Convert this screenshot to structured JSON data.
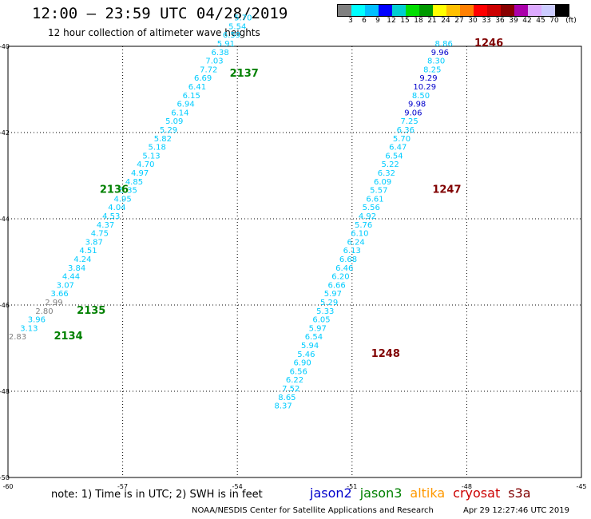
{
  "title": "12:00 – 23:59 UTC 04/28/2019",
  "subtitle": "12 hour collection of altimeter wave heights",
  "legend": {
    "unit": "(ft)",
    "colors": [
      "#808080",
      "#00ffff",
      "#00bfff",
      "#0000ff",
      "#00ced1",
      "#00dd00",
      "#009900",
      "#ffff00",
      "#ffc000",
      "#ff8000",
      "#ff0000",
      "#cc0000",
      "#880000",
      "#aa00aa",
      "#ddaaff",
      "#ccccff",
      "#000000"
    ],
    "labels": [
      "3",
      "6",
      "9",
      "12",
      "15",
      "18",
      "21",
      "24",
      "27",
      "30",
      "33",
      "36",
      "39",
      "42",
      "45",
      "70"
    ]
  },
  "chart_data": {
    "type": "scatter",
    "x_ticks": [
      "-60",
      "-57",
      "-54",
      "-51",
      "-48",
      "-45"
    ],
    "y_ticks": [
      "-40",
      "-42",
      "-44",
      "-46",
      "-48",
      "-50"
    ],
    "xlim": [
      -60,
      -45
    ],
    "ylim": [
      -50,
      -40
    ],
    "track_labels": [
      {
        "text": "2137",
        "lon": -54.2,
        "lat": -40.7,
        "color": "#008000"
      },
      {
        "text": "2136",
        "lon": -57.6,
        "lat": -43.4,
        "color": "#008000"
      },
      {
        "text": "2135",
        "lon": -58.2,
        "lat": -46.2,
        "color": "#008000"
      },
      {
        "text": "2134",
        "lon": -58.8,
        "lat": -46.8,
        "color": "#008000"
      },
      {
        "text": "1246",
        "lon": -47.8,
        "lat": -40.0,
        "color": "#800000"
      },
      {
        "text": "1247",
        "lon": -48.9,
        "lat": -43.4,
        "color": "#800000"
      },
      {
        "text": "1248",
        "lon": -50.5,
        "lat": -47.2,
        "color": "#800000"
      }
    ],
    "series": [
      {
        "points": [
          {
            "v": "2.83",
            "lon": -59.75,
            "lat": -46.8,
            "c": "#808080"
          },
          {
            "v": "3.13",
            "lon": -59.45,
            "lat": -46.6,
            "c": "#00ccff"
          },
          {
            "v": "3.96",
            "lon": -59.25,
            "lat": -46.4,
            "c": "#00ccff"
          },
          {
            "v": "2.80",
            "lon": -59.05,
            "lat": -46.2,
            "c": "#808080"
          },
          {
            "v": "2.99",
            "lon": -58.8,
            "lat": -46.0,
            "c": "#808080"
          },
          {
            "v": "3.66",
            "lon": -58.65,
            "lat": -45.8,
            "c": "#00ccff"
          },
          {
            "v": "3.07",
            "lon": -58.5,
            "lat": -45.6,
            "c": "#00ccff"
          },
          {
            "v": "4.44",
            "lon": -58.35,
            "lat": -45.4,
            "c": "#00ccff"
          },
          {
            "v": "3.84",
            "lon": -58.2,
            "lat": -45.2,
            "c": "#00ccff"
          },
          {
            "v": "4.24",
            "lon": -58.05,
            "lat": -45.0,
            "c": "#00ccff"
          },
          {
            "v": "4.51",
            "lon": -57.9,
            "lat": -44.8,
            "c": "#00ccff"
          },
          {
            "v": "3.87",
            "lon": -57.75,
            "lat": -44.6,
            "c": "#00ccff"
          },
          {
            "v": "4.75",
            "lon": -57.6,
            "lat": -44.4,
            "c": "#00ccff"
          },
          {
            "v": "4.37",
            "lon": -57.45,
            "lat": -44.2,
            "c": "#00ccff"
          },
          {
            "v": "4.53",
            "lon": -57.3,
            "lat": -44.0,
            "c": "#00ccff"
          },
          {
            "v": "4.04",
            "lon": -57.15,
            "lat": -43.8,
            "c": "#00ccff"
          },
          {
            "v": "4.95",
            "lon": -57.0,
            "lat": -43.6,
            "c": "#00ccff"
          },
          {
            "v": "5.35",
            "lon": -56.85,
            "lat": -43.4,
            "c": "#00ccff"
          },
          {
            "v": "4.85",
            "lon": -56.7,
            "lat": -43.2,
            "c": "#00ccff"
          },
          {
            "v": "4.97",
            "lon": -56.55,
            "lat": -43.0,
            "c": "#00ccff"
          },
          {
            "v": "4.70",
            "lon": -56.4,
            "lat": -42.8,
            "c": "#00ccff"
          },
          {
            "v": "5.13",
            "lon": -56.25,
            "lat": -42.6,
            "c": "#00ccff"
          },
          {
            "v": "5.18",
            "lon": -56.1,
            "lat": -42.4,
            "c": "#00ccff"
          },
          {
            "v": "5.82",
            "lon": -55.95,
            "lat": -42.2,
            "c": "#00ccff"
          },
          {
            "v": "5.29",
            "lon": -55.8,
            "lat": -42.0,
            "c": "#00ccff"
          },
          {
            "v": "5.09",
            "lon": -55.65,
            "lat": -41.8,
            "c": "#00ccff"
          },
          {
            "v": "6.14",
            "lon": -55.5,
            "lat": -41.6,
            "c": "#00ccff"
          },
          {
            "v": "6.94",
            "lon": -55.35,
            "lat": -41.4,
            "c": "#00ccff"
          },
          {
            "v": "6.15",
            "lon": -55.2,
            "lat": -41.2,
            "c": "#00ccff"
          },
          {
            "v": "6.41",
            "lon": -55.05,
            "lat": -41.0,
            "c": "#00ccff"
          },
          {
            "v": "6.69",
            "lon": -54.9,
            "lat": -40.8,
            "c": "#00ccff"
          },
          {
            "v": "7.72",
            "lon": -54.75,
            "lat": -40.6,
            "c": "#00ccff"
          },
          {
            "v": "7.03",
            "lon": -54.6,
            "lat": -40.4,
            "c": "#00ccff"
          },
          {
            "v": "6.38",
            "lon": -54.45,
            "lat": -40.2,
            "c": "#00ccff"
          },
          {
            "v": "5.91",
            "lon": -54.3,
            "lat": -40.0,
            "c": "#00ccff"
          },
          {
            "v": "6.59",
            "lon": -54.15,
            "lat": -39.8,
            "c": "#00ccff"
          },
          {
            "v": "5.54",
            "lon": -54.0,
            "lat": -39.6,
            "c": "#00ccff"
          },
          {
            "v": "5.70",
            "lon": -53.85,
            "lat": -39.4,
            "c": "#00ccff"
          }
        ]
      },
      {
        "points": [
          {
            "v": "8.86",
            "lon": -48.6,
            "lat": -40.0,
            "c": "#00ccff"
          },
          {
            "v": "9.96",
            "lon": -48.7,
            "lat": -40.2,
            "c": "#0000cc"
          },
          {
            "v": "8.30",
            "lon": -48.8,
            "lat": -40.4,
            "c": "#00ccff"
          },
          {
            "v": "8.25",
            "lon": -48.9,
            "lat": -40.6,
            "c": "#00ccff"
          },
          {
            "v": "9.29",
            "lon": -49.0,
            "lat": -40.8,
            "c": "#0000cc"
          },
          {
            "v": "10.29",
            "lon": -49.1,
            "lat": -41.0,
            "c": "#0000cc"
          },
          {
            "v": "8.50",
            "lon": -49.2,
            "lat": -41.2,
            "c": "#00ccff"
          },
          {
            "v": "9.98",
            "lon": -49.3,
            "lat": -41.4,
            "c": "#0000cc"
          },
          {
            "v": "9.06",
            "lon": -49.4,
            "lat": -41.6,
            "c": "#0000cc"
          },
          {
            "v": "7.25",
            "lon": -49.5,
            "lat": -41.8,
            "c": "#00ccff"
          },
          {
            "v": "6.36",
            "lon": -49.6,
            "lat": -42.0,
            "c": "#00ccff"
          },
          {
            "v": "5.70",
            "lon": -49.7,
            "lat": -42.2,
            "c": "#00ccff"
          },
          {
            "v": "6.47",
            "lon": -49.8,
            "lat": -42.4,
            "c": "#00ccff"
          },
          {
            "v": "6.54",
            "lon": -49.9,
            "lat": -42.6,
            "c": "#00ccff"
          },
          {
            "v": "5.22",
            "lon": -50.0,
            "lat": -42.8,
            "c": "#00ccff"
          },
          {
            "v": "6.32",
            "lon": -50.1,
            "lat": -43.0,
            "c": "#00ccff"
          },
          {
            "v": "6.09",
            "lon": -50.2,
            "lat": -43.2,
            "c": "#00ccff"
          },
          {
            "v": "5.57",
            "lon": -50.3,
            "lat": -43.4,
            "c": "#00ccff"
          },
          {
            "v": "6.61",
            "lon": -50.4,
            "lat": -43.6,
            "c": "#00ccff"
          },
          {
            "v": "5.56",
            "lon": -50.5,
            "lat": -43.8,
            "c": "#00ccff"
          },
          {
            "v": "4.92",
            "lon": -50.6,
            "lat": -44.0,
            "c": "#00ccff"
          },
          {
            "v": "5.76",
            "lon": -50.7,
            "lat": -44.2,
            "c": "#00ccff"
          },
          {
            "v": "6.10",
            "lon": -50.8,
            "lat": -44.4,
            "c": "#00ccff"
          },
          {
            "v": "6.24",
            "lon": -50.9,
            "lat": -44.6,
            "c": "#00ccff"
          },
          {
            "v": "6.13",
            "lon": -51.0,
            "lat": -44.8,
            "c": "#00ccff"
          },
          {
            "v": "6.68",
            "lon": -51.1,
            "lat": -45.0,
            "c": "#00ccff"
          },
          {
            "v": "6.46",
            "lon": -51.2,
            "lat": -45.2,
            "c": "#00ccff"
          },
          {
            "v": "6.20",
            "lon": -51.3,
            "lat": -45.4,
            "c": "#00ccff"
          },
          {
            "v": "6.66",
            "lon": -51.4,
            "lat": -45.6,
            "c": "#00ccff"
          },
          {
            "v": "5.97",
            "lon": -51.5,
            "lat": -45.8,
            "c": "#00ccff"
          },
          {
            "v": "5.29",
            "lon": -51.6,
            "lat": -46.0,
            "c": "#00ccff"
          },
          {
            "v": "5.33",
            "lon": -51.7,
            "lat": -46.2,
            "c": "#00ccff"
          },
          {
            "v": "6.05",
            "lon": -51.8,
            "lat": -46.4,
            "c": "#00ccff"
          },
          {
            "v": "5.97",
            "lon": -51.9,
            "lat": -46.6,
            "c": "#00ccff"
          },
          {
            "v": "6.54",
            "lon": -52.0,
            "lat": -46.8,
            "c": "#00ccff"
          },
          {
            "v": "5.94",
            "lon": -52.1,
            "lat": -47.0,
            "c": "#00ccff"
          },
          {
            "v": "5.46",
            "lon": -52.2,
            "lat": -47.2,
            "c": "#00ccff"
          },
          {
            "v": "6.90",
            "lon": -52.3,
            "lat": -47.4,
            "c": "#00ccff"
          },
          {
            "v": "6.56",
            "lon": -52.4,
            "lat": -47.6,
            "c": "#00ccff"
          },
          {
            "v": "6.22",
            "lon": -52.5,
            "lat": -47.8,
            "c": "#00ccff"
          },
          {
            "v": "7.52",
            "lon": -52.6,
            "lat": -48.0,
            "c": "#00ccff"
          },
          {
            "v": "8.65",
            "lon": -52.7,
            "lat": -48.2,
            "c": "#00ccff"
          },
          {
            "v": "8.37",
            "lon": -52.8,
            "lat": -48.4,
            "c": "#00ccff"
          }
        ]
      }
    ]
  },
  "note": "note:  1) Time is in UTC;  2) SWH is in feet",
  "satellites": [
    {
      "name": "jason2",
      "color": "#0000cc"
    },
    {
      "name": "jason3",
      "color": "#008000"
    },
    {
      "name": "altika",
      "color": "#ff9900"
    },
    {
      "name": "cryosat",
      "color": "#cc0000"
    },
    {
      "name": "s3a",
      "color": "#800000"
    }
  ],
  "footer": "NOAA/NESDIS Center for Satellite Applications and Research",
  "footer_date": "Apr 29 12:27:46 UTC 2019"
}
